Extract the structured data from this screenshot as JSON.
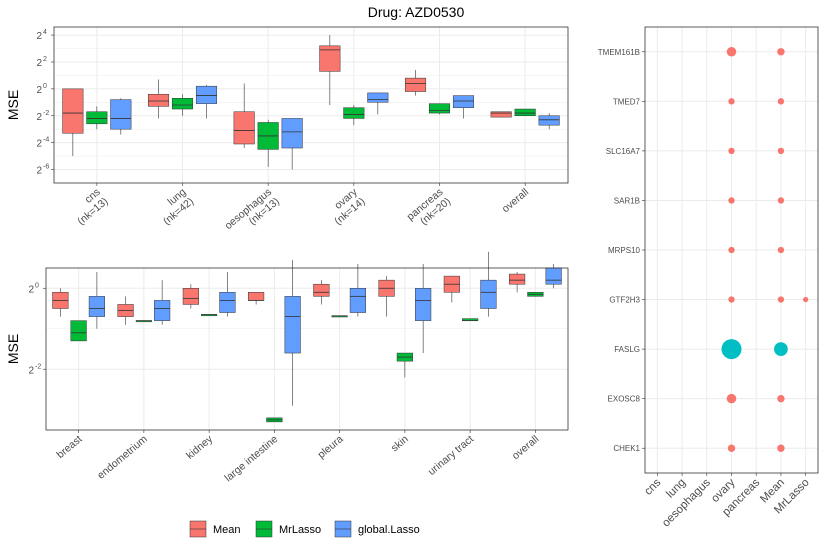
{
  "colors": {
    "mean": "#F8766D",
    "mrlasso": "#00BA38",
    "global_lasso": "#619CFF",
    "bubble_red": "#F8766D",
    "bubble_teal": "#00BFC4",
    "grid": "#EBEBEB",
    "panel_border": "#333333",
    "text": "#4D4D4D"
  },
  "chart_data": [
    {
      "type": "boxplot",
      "title": "Drug: AZD0530",
      "ylabel": "MSE",
      "y_scale": "log2",
      "ylim_log2": [
        -7,
        4.6
      ],
      "y_ticks": [
        {
          "exp": 4,
          "label": "2",
          "sup": "4"
        },
        {
          "exp": 2,
          "label": "2",
          "sup": "2"
        },
        {
          "exp": 0,
          "label": "2",
          "sup": "0"
        },
        {
          "exp": -2,
          "label": "2",
          "sup": "-2"
        },
        {
          "exp": -4,
          "label": "2",
          "sup": "-4"
        },
        {
          "exp": -6,
          "label": "2",
          "sup": "-6"
        }
      ],
      "categories": [
        {
          "l1": "cns",
          "l2": "(nk=13)"
        },
        {
          "l1": "lung",
          "l2": "(nk=42)"
        },
        {
          "l1": "oesophagus",
          "l2": "(nk=13)"
        },
        {
          "l1": "ovary",
          "l2": "(nk=14)"
        },
        {
          "l1": "pancreas",
          "l2": "(nk=20)"
        },
        {
          "l1": "overall",
          "l2": ""
        }
      ],
      "series": [
        {
          "name": "Mean",
          "stats": [
            [
              -5,
              -3.3,
              -1.8,
              0,
              0
            ],
            [
              -2.2,
              -1.3,
              -0.9,
              -0.4,
              0.7
            ],
            [
              -4.4,
              -4.1,
              -3.1,
              -1.7,
              0.4
            ],
            [
              -1.2,
              1.3,
              2.9,
              3.2,
              4
            ],
            [
              -0.5,
              -0.2,
              0.4,
              0.8,
              1.4
            ],
            [
              -2.1,
              -2.1,
              -1.8,
              -1.7,
              -1.7
            ]
          ]
        },
        {
          "name": "MrLasso",
          "stats": [
            [
              -3,
              -2.6,
              -2.2,
              -1.7,
              -1.3
            ],
            [
              -2,
              -1.5,
              -1.2,
              -0.7,
              -0.4
            ],
            [
              -5.8,
              -4.5,
              -3.5,
              -2.5,
              -2.3
            ],
            [
              -2.7,
              -2.2,
              -1.9,
              -1.4,
              -1.2
            ],
            [
              -1.9,
              -1.8,
              -1.6,
              -1.1,
              -1.1
            ],
            [
              -2,
              -2,
              -1.8,
              -1.5,
              -1.5
            ]
          ]
        },
        {
          "name": "global.Lasso",
          "stats": [
            [
              -3.4,
              -3,
              -2.2,
              -0.8,
              -0.7
            ],
            [
              -2.2,
              -1.1,
              -0.5,
              0.2,
              0.3
            ],
            [
              -6,
              -4.4,
              -3.2,
              -2.2,
              -2.2
            ],
            [
              -1.9,
              -1,
              -0.8,
              -0.3,
              -0.3
            ],
            [
              -2.2,
              -1.4,
              -0.9,
              -0.5,
              -0.5
            ],
            [
              -3,
              -2.7,
              -2.3,
              -2,
              -1.8
            ]
          ]
        }
      ]
    },
    {
      "type": "boxplot",
      "title": "",
      "ylabel": "MSE",
      "y_scale": "log2",
      "ylim_log2": [
        -3.5,
        0.5
      ],
      "y_ticks": [
        {
          "exp": 0,
          "label": "2",
          "sup": "0"
        },
        {
          "exp": -2,
          "label": "2",
          "sup": "-2"
        }
      ],
      "categories": [
        {
          "l1": "breast",
          "l2": ""
        },
        {
          "l1": "endometrium",
          "l2": ""
        },
        {
          "l1": "kidney",
          "l2": ""
        },
        {
          "l1": "large intestine",
          "l2": ""
        },
        {
          "l1": "pleura",
          "l2": ""
        },
        {
          "l1": "skin",
          "l2": ""
        },
        {
          "l1": "urinary tract",
          "l2": ""
        },
        {
          "l1": "overall",
          "l2": ""
        }
      ],
      "series": [
        {
          "name": "Mean",
          "stats": [
            [
              -0.7,
              -0.5,
              -0.3,
              -0.1,
              0
            ],
            [
              -0.9,
              -0.7,
              -0.55,
              -0.4,
              -0.2
            ],
            [
              -0.5,
              -0.4,
              -0.25,
              0,
              0.1
            ],
            [
              -0.4,
              -0.3,
              -0.3,
              -0.1,
              -0.1
            ],
            [
              -0.4,
              -0.2,
              -0.1,
              0.1,
              0.2
            ],
            [
              -0.7,
              -0.2,
              0,
              0.2,
              0.3
            ],
            [
              -0.35,
              -0.1,
              0.1,
              0.3,
              0.3
            ],
            [
              -0.1,
              0.1,
              0.2,
              0.35,
              0.4
            ]
          ]
        },
        {
          "name": "MrLasso",
          "stats": [
            [
              -1.3,
              -1.3,
              -1.1,
              -0.8,
              -0.8
            ],
            [
              -0.8,
              -0.8,
              -0.8,
              -0.8,
              -0.8
            ],
            [
              -0.65,
              -0.65,
              -0.65,
              -0.65,
              -0.65
            ],
            [
              -3.3,
              -3.3,
              -3.25,
              -3.2,
              -3.2
            ],
            [
              -0.68,
              -0.68,
              -0.68,
              -0.68,
              -0.68
            ],
            [
              -2.2,
              -1.8,
              -1.7,
              -1.6,
              -1.6
            ],
            [
              -0.8,
              -0.8,
              -0.8,
              -0.75,
              -0.75
            ],
            [
              -0.2,
              -0.2,
              -0.15,
              -0.1,
              -0.1
            ]
          ]
        },
        {
          "name": "global.Lasso",
          "stats": [
            [
              -1,
              -0.7,
              -0.5,
              -0.2,
              0.4
            ],
            [
              -0.9,
              -0.8,
              -0.5,
              -0.3,
              0.2
            ],
            [
              -0.7,
              -0.6,
              -0.3,
              -0.1,
              0.4
            ],
            [
              -2.9,
              -1.6,
              -0.7,
              -0.2,
              0.7
            ],
            [
              -0.7,
              -0.6,
              -0.2,
              0,
              0.6
            ],
            [
              -1.6,
              -0.8,
              -0.3,
              0,
              0.6
            ],
            [
              -0.7,
              -0.5,
              -0.1,
              0.2,
              0.9
            ],
            [
              0,
              0.1,
              0.2,
              0.5,
              0.6
            ]
          ]
        }
      ]
    },
    {
      "type": "scatter",
      "subtype": "bubble",
      "x_categories": [
        "cns",
        "lung",
        "oesophagus",
        "ovary",
        "pancreas",
        "Mean",
        "MrLasso"
      ],
      "y_categories": [
        "TMEM161B",
        "TMED7",
        "SLC16A7",
        "SAR1B",
        "MRPS10",
        "GTF2H3",
        "FASLG",
        "EXOSC8",
        "CHEK1"
      ],
      "points": [
        {
          "x": "ovary",
          "y": "TMEM161B",
          "size": 3,
          "sign": "positive"
        },
        {
          "x": "Mean",
          "y": "TMEM161B",
          "size": 2,
          "sign": "positive"
        },
        {
          "x": "ovary",
          "y": "TMED7",
          "size": 1.5,
          "sign": "positive"
        },
        {
          "x": "Mean",
          "y": "TMED7",
          "size": 1.5,
          "sign": "positive"
        },
        {
          "x": "ovary",
          "y": "SLC16A7",
          "size": 1.5,
          "sign": "positive"
        },
        {
          "x": "Mean",
          "y": "SLC16A7",
          "size": 1.5,
          "sign": "positive"
        },
        {
          "x": "ovary",
          "y": "SAR1B",
          "size": 1.5,
          "sign": "positive"
        },
        {
          "x": "Mean",
          "y": "SAR1B",
          "size": 1.5,
          "sign": "positive"
        },
        {
          "x": "ovary",
          "y": "MRPS10",
          "size": 1.5,
          "sign": "positive"
        },
        {
          "x": "Mean",
          "y": "MRPS10",
          "size": 1.5,
          "sign": "positive"
        },
        {
          "x": "ovary",
          "y": "GTF2H3",
          "size": 1.5,
          "sign": "positive"
        },
        {
          "x": "Mean",
          "y": "GTF2H3",
          "size": 1.5,
          "sign": "positive"
        },
        {
          "x": "MrLasso",
          "y": "GTF2H3",
          "size": 1,
          "sign": "positive"
        },
        {
          "x": "ovary",
          "y": "FASLG",
          "size": 8,
          "sign": "negative"
        },
        {
          "x": "Mean",
          "y": "FASLG",
          "size": 5,
          "sign": "negative"
        },
        {
          "x": "ovary",
          "y": "EXOSC8",
          "size": 3,
          "sign": "positive"
        },
        {
          "x": "Mean",
          "y": "EXOSC8",
          "size": 2,
          "sign": "positive"
        },
        {
          "x": "ovary",
          "y": "CHEK1",
          "size": 2,
          "sign": "positive"
        },
        {
          "x": "Mean",
          "y": "CHEK1",
          "size": 2,
          "sign": "positive"
        }
      ]
    }
  ],
  "legend": {
    "items": [
      {
        "key": "mean",
        "label": "Mean"
      },
      {
        "key": "mrlasso",
        "label": "MrLasso"
      },
      {
        "key": "global_lasso",
        "label": "global.Lasso"
      }
    ]
  }
}
